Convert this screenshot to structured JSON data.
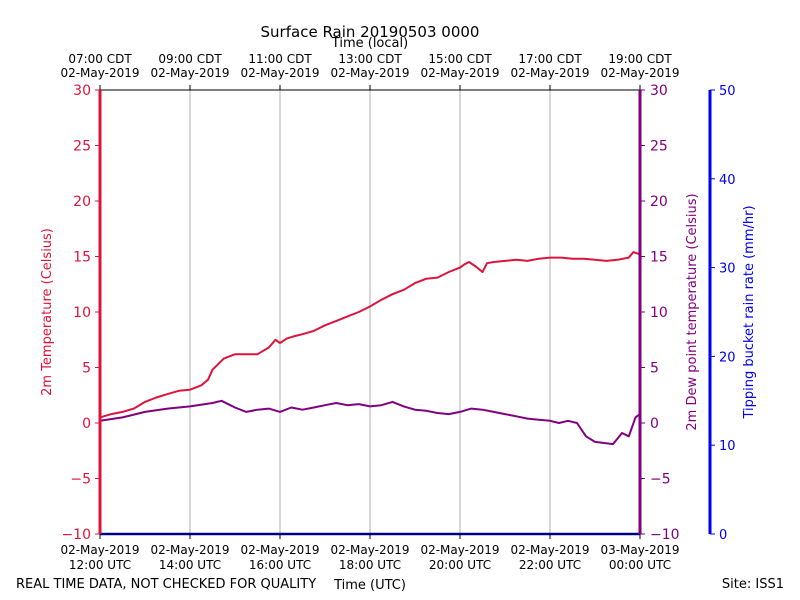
{
  "chart_data": {
    "type": "line",
    "title": "Surface Rain 20190503 0000",
    "top_axis_label": "Time (local)",
    "xlabel": "Time (UTC)",
    "ylabel_left": "2m Temperature (Celsius)",
    "ylabel_right": "2m Dew point temperature (Celsius)",
    "ylabel_far_right": "Tipping bucket rain rate (mm/hr)",
    "footer_left": "REAL TIME DATA, NOT CHECKED FOR QUALITY",
    "footer_right": "Site: ISS1",
    "xlim_hours": [
      12,
      24
    ],
    "ylim_left": [
      -10,
      30
    ],
    "ylim_right": [
      -10,
      30
    ],
    "ylim_rain": [
      0,
      50
    ],
    "bottom_ticks": [
      {
        "hour": 12,
        "line1": "02-May-2019",
        "line2": "12:00 UTC"
      },
      {
        "hour": 14,
        "line1": "02-May-2019",
        "line2": "14:00 UTC"
      },
      {
        "hour": 16,
        "line1": "02-May-2019",
        "line2": "16:00 UTC"
      },
      {
        "hour": 18,
        "line1": "02-May-2019",
        "line2": "18:00 UTC"
      },
      {
        "hour": 20,
        "line1": "02-May-2019",
        "line2": "20:00 UTC"
      },
      {
        "hour": 22,
        "line1": "02-May-2019",
        "line2": "22:00 UTC"
      },
      {
        "hour": 24,
        "line1": "03-May-2019",
        "line2": "00:00 UTC"
      }
    ],
    "top_ticks": [
      {
        "hour": 12,
        "line1": "07:00 CDT",
        "line2": "02-May-2019"
      },
      {
        "hour": 14,
        "line1": "09:00 CDT",
        "line2": "02-May-2019"
      },
      {
        "hour": 16,
        "line1": "11:00 CDT",
        "line2": "02-May-2019"
      },
      {
        "hour": 18,
        "line1": "13:00 CDT",
        "line2": "02-May-2019"
      },
      {
        "hour": 20,
        "line1": "15:00 CDT",
        "line2": "02-May-2019"
      },
      {
        "hour": 22,
        "line1": "17:00 CDT",
        "line2": "02-May-2019"
      },
      {
        "hour": 24,
        "line1": "19:00 CDT",
        "line2": "02-May-2019"
      }
    ],
    "left_ticks": [
      "30",
      "25",
      "20",
      "15",
      "10",
      "5",
      "0",
      "−5",
      "−10"
    ],
    "right_ticks": [
      "30",
      "25",
      "20",
      "15",
      "10",
      "5",
      "0",
      "−5",
      "−10"
    ],
    "rain_ticks": [
      "50",
      "40",
      "30",
      "20",
      "10",
      "0"
    ],
    "colors": {
      "temperature": "#dc143c",
      "dewpoint": "#800080",
      "rain": "#0000ee",
      "grid": "#b0b0b0",
      "axis": "#000000"
    },
    "series": [
      {
        "name": "2m Temperature",
        "axis": "left",
        "x_hours": [
          12.0,
          12.25,
          12.5,
          12.75,
          13.0,
          13.25,
          13.5,
          13.75,
          14.0,
          14.25,
          14.4,
          14.5,
          14.6,
          14.75,
          15.0,
          15.25,
          15.5,
          15.75,
          15.9,
          16.0,
          16.15,
          16.3,
          16.5,
          16.75,
          17.0,
          17.25,
          17.5,
          17.75,
          18.0,
          18.25,
          18.5,
          18.75,
          19.0,
          19.25,
          19.5,
          19.75,
          20.0,
          20.1,
          20.2,
          20.35,
          20.5,
          20.6,
          20.75,
          21.0,
          21.25,
          21.5,
          21.75,
          22.0,
          22.25,
          22.5,
          22.75,
          23.0,
          23.25,
          23.5,
          23.75,
          23.85,
          24.0
        ],
        "values": [
          0.5,
          0.8,
          1.0,
          1.3,
          1.9,
          2.3,
          2.6,
          2.9,
          3.0,
          3.4,
          3.9,
          4.8,
          5.2,
          5.8,
          6.2,
          6.2,
          6.2,
          6.8,
          7.5,
          7.2,
          7.6,
          7.8,
          8.0,
          8.3,
          8.8,
          9.2,
          9.6,
          10.0,
          10.5,
          11.1,
          11.6,
          12.0,
          12.6,
          13.0,
          13.1,
          13.6,
          14.0,
          14.3,
          14.5,
          14.1,
          13.6,
          14.4,
          14.5,
          14.6,
          14.7,
          14.6,
          14.8,
          14.9,
          14.9,
          14.8,
          14.8,
          14.7,
          14.6,
          14.7,
          14.9,
          15.4,
          15.2
        ]
      },
      {
        "name": "2m Dew point temperature",
        "axis": "right",
        "x_hours": [
          12.0,
          12.5,
          13.0,
          13.5,
          14.0,
          14.5,
          14.7,
          15.0,
          15.25,
          15.5,
          15.75,
          16.0,
          16.25,
          16.5,
          16.75,
          17.0,
          17.25,
          17.5,
          17.75,
          18.0,
          18.25,
          18.5,
          18.75,
          19.0,
          19.25,
          19.5,
          19.75,
          20.0,
          20.25,
          20.5,
          20.75,
          21.0,
          21.25,
          21.5,
          21.75,
          22.0,
          22.2,
          22.4,
          22.6,
          22.8,
          23.0,
          23.2,
          23.4,
          23.6,
          23.75,
          23.9,
          24.0
        ],
        "values": [
          0.2,
          0.5,
          1.0,
          1.3,
          1.5,
          1.8,
          2.0,
          1.4,
          1.0,
          1.2,
          1.3,
          1.0,
          1.4,
          1.2,
          1.4,
          1.6,
          1.8,
          1.6,
          1.7,
          1.5,
          1.6,
          1.9,
          1.5,
          1.2,
          1.1,
          0.9,
          0.8,
          1.0,
          1.3,
          1.2,
          1.0,
          0.8,
          0.6,
          0.4,
          0.3,
          0.2,
          0.0,
          0.2,
          0.0,
          -1.2,
          -1.7,
          -1.8,
          -1.9,
          -0.9,
          -1.2,
          0.5,
          0.8
        ]
      },
      {
        "name": "Tipping bucket rain rate",
        "axis": "rain",
        "x_hours": [
          12.0,
          24.0
        ],
        "values": [
          0,
          0
        ]
      }
    ]
  }
}
